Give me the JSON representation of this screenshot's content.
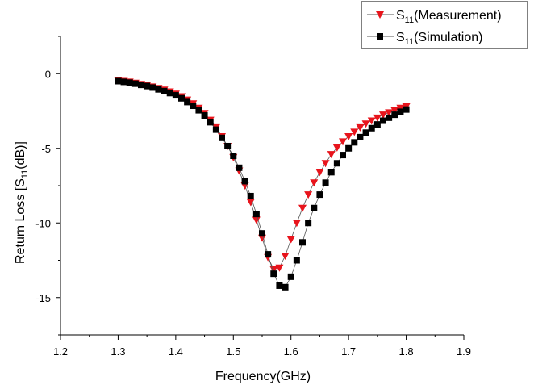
{
  "chart_data": {
    "type": "line",
    "title": "",
    "xlabel": "Frequency(GHz)",
    "ylabel": {
      "main": "Return Loss [S",
      "sub": "11",
      "tail": "(dB)]"
    },
    "xlim": [
      1.2,
      1.9
    ],
    "ylim": [
      -17.5,
      2.5
    ],
    "xticks": [
      "1.2",
      "1.3",
      "1.4",
      "1.5",
      "1.6",
      "1.7",
      "1.8",
      "1.9"
    ],
    "xtick_values": [
      1.2,
      1.3,
      1.4,
      1.5,
      1.6,
      1.7,
      1.8,
      1.9
    ],
    "yticks": [
      "0",
      "-5",
      "-10",
      "-15"
    ],
    "ytick_values": [
      0,
      -5,
      -10,
      -15
    ],
    "grid": false,
    "legend": {
      "placement": "top-right",
      "entries": [
        {
          "main": "S",
          "sub": "11",
          "tail": "(Measurement)"
        },
        {
          "main": "S",
          "sub": "11",
          "tail": "(Simulation)"
        }
      ]
    },
    "series": [
      {
        "marker": "triangle-down",
        "color": "#e8141c",
        "line_color": "#555555",
        "x": [
          1.3,
          1.31,
          1.32,
          1.33,
          1.34,
          1.35,
          1.36,
          1.37,
          1.38,
          1.39,
          1.4,
          1.41,
          1.42,
          1.43,
          1.44,
          1.45,
          1.46,
          1.47,
          1.48,
          1.49,
          1.5,
          1.51,
          1.52,
          1.53,
          1.54,
          1.55,
          1.56,
          1.57,
          1.58,
          1.59,
          1.6,
          1.61,
          1.62,
          1.63,
          1.64,
          1.65,
          1.66,
          1.67,
          1.68,
          1.69,
          1.7,
          1.71,
          1.72,
          1.73,
          1.74,
          1.75,
          1.76,
          1.77,
          1.78,
          1.79,
          1.8
        ],
        "y": [
          -0.45,
          -0.5,
          -0.55,
          -0.62,
          -0.7,
          -0.78,
          -0.87,
          -0.97,
          -1.08,
          -1.2,
          -1.35,
          -1.53,
          -1.75,
          -2.0,
          -2.3,
          -2.65,
          -3.1,
          -3.6,
          -4.2,
          -4.85,
          -5.6,
          -6.5,
          -7.5,
          -8.6,
          -9.8,
          -11.0,
          -12.3,
          -13.1,
          -13.0,
          -12.2,
          -11.1,
          -10.0,
          -9.0,
          -8.1,
          -7.3,
          -6.6,
          -6.0,
          -5.4,
          -4.95,
          -4.55,
          -4.2,
          -3.9,
          -3.6,
          -3.35,
          -3.15,
          -2.95,
          -2.75,
          -2.6,
          -2.45,
          -2.3,
          -2.2
        ]
      },
      {
        "marker": "square",
        "color": "#000000",
        "line_color": "#555555",
        "x": [
          1.3,
          1.31,
          1.32,
          1.33,
          1.34,
          1.35,
          1.36,
          1.37,
          1.38,
          1.39,
          1.4,
          1.41,
          1.42,
          1.43,
          1.44,
          1.45,
          1.46,
          1.47,
          1.48,
          1.49,
          1.5,
          1.51,
          1.52,
          1.53,
          1.54,
          1.55,
          1.56,
          1.57,
          1.58,
          1.59,
          1.6,
          1.61,
          1.62,
          1.63,
          1.64,
          1.65,
          1.66,
          1.67,
          1.68,
          1.69,
          1.7,
          1.71,
          1.72,
          1.73,
          1.74,
          1.75,
          1.76,
          1.77,
          1.78,
          1.79,
          1.8
        ],
        "y": [
          -0.5,
          -0.55,
          -0.6,
          -0.67,
          -0.75,
          -0.83,
          -0.93,
          -1.05,
          -1.17,
          -1.3,
          -1.45,
          -1.65,
          -1.9,
          -2.15,
          -2.45,
          -2.8,
          -3.25,
          -3.75,
          -4.3,
          -4.85,
          -5.5,
          -6.3,
          -7.2,
          -8.2,
          -9.4,
          -10.7,
          -12.1,
          -13.4,
          -14.2,
          -14.3,
          -13.6,
          -12.5,
          -11.3,
          -10.0,
          -9.0,
          -8.1,
          -7.3,
          -6.6,
          -6.0,
          -5.45,
          -5.0,
          -4.6,
          -4.25,
          -3.95,
          -3.65,
          -3.4,
          -3.15,
          -2.95,
          -2.75,
          -2.55,
          -2.4
        ]
      }
    ]
  }
}
